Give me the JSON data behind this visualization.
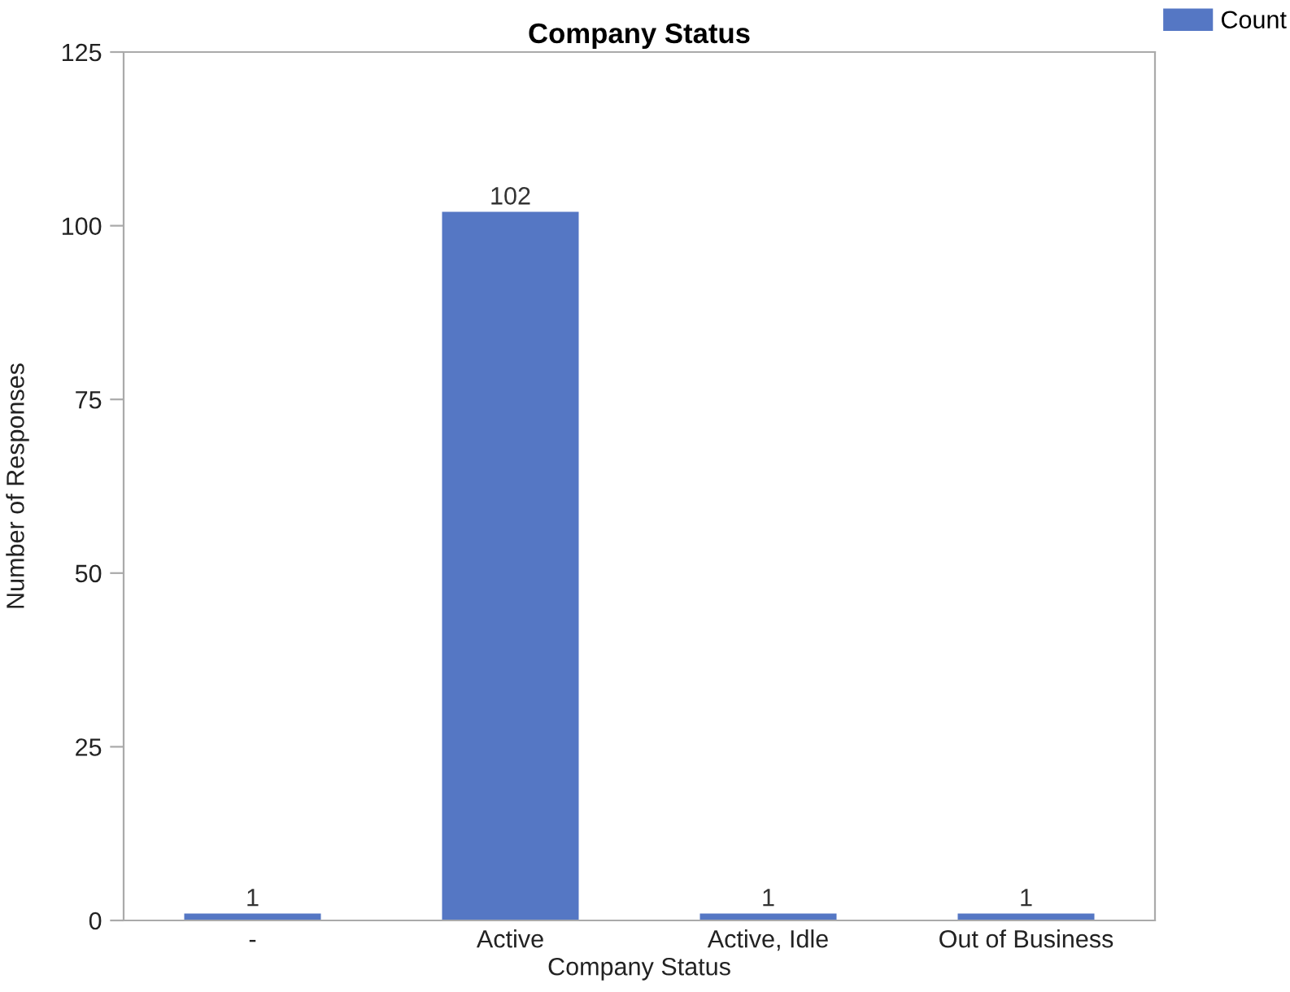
{
  "chart_data": {
    "type": "bar",
    "title": "Company Status",
    "xlabel": "Company Status",
    "ylabel": "Number of Responses",
    "categories": [
      "-",
      "Active",
      "Active, Idle",
      "Out of Business"
    ],
    "series": [
      {
        "name": "Count",
        "color": "#5577c4",
        "values": [
          1,
          102,
          1,
          1
        ]
      }
    ],
    "ylim": [
      0,
      125
    ],
    "yticks": [
      0,
      25,
      50,
      75,
      100,
      125
    ],
    "grid": false,
    "legend": "top right",
    "data_labels": true
  }
}
